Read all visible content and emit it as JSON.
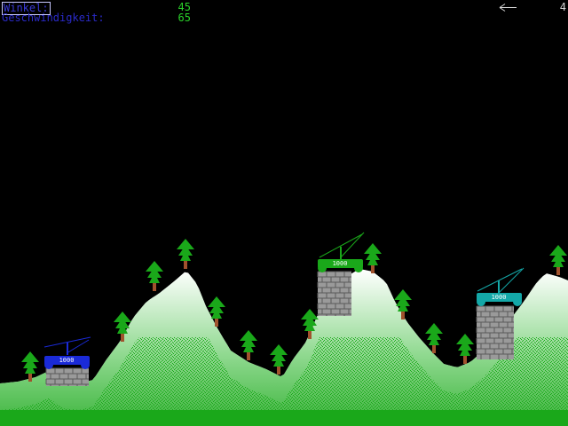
{
  "hud": {
    "angle_label": "Winkel:",
    "angle_value": "45",
    "speed_label": "Geschwindigkeit:",
    "speed_value": "65",
    "wind_icon": "arrow-left-icon",
    "wind_value": "4"
  },
  "colors": {
    "background": "#000000",
    "label": "#2a2ac8",
    "value": "#2ad22a",
    "snow": "#ffffff",
    "grass": "#1aa81a",
    "tower": "#9a9a9a",
    "tree_foliage": "#1aa81a",
    "tree_trunk": "#a0522d",
    "player_blue": "#1a2ad8",
    "player_green": "#1aa81a",
    "player_cyan": "#14a8a8"
  },
  "players": [
    {
      "name": "player-blue",
      "color": "#1a2ad8",
      "health": "1000"
    },
    {
      "name": "player-green",
      "color": "#1aa81a",
      "health": "1000"
    },
    {
      "name": "player-cyan",
      "color": "#14a8a8",
      "health": "1000"
    }
  ]
}
